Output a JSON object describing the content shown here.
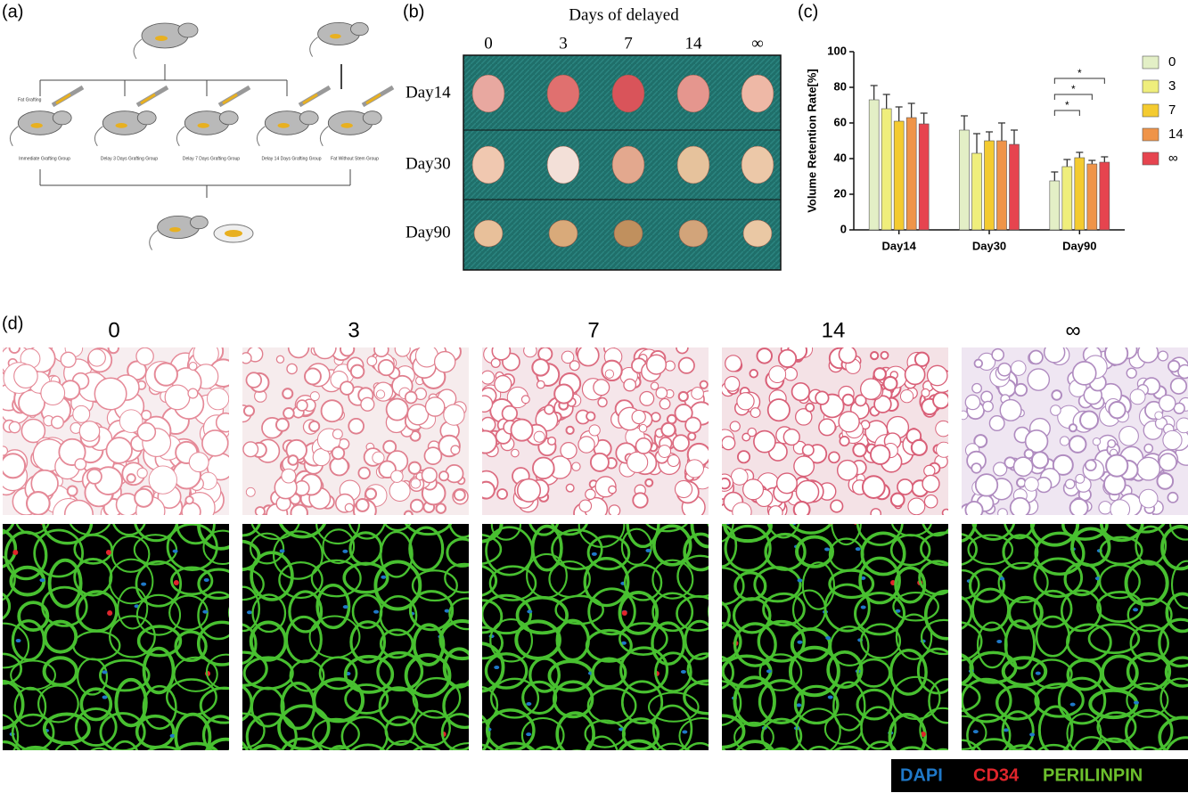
{
  "panel_labels": [
    "(a)",
    "(b)",
    "(c)",
    "(d)"
  ],
  "panel_a": {
    "step": "Fat Grafting",
    "groups": [
      "Immediate Grafting Group",
      "Delay 3 Days Grafting Group",
      "Delay 7 Days Grafting Group",
      "Delay 14 Days Grafting Group",
      "Fat Without Stem Group"
    ]
  },
  "panel_b": {
    "title": "Days of delayed",
    "columns": [
      "0",
      "3",
      "7",
      "14",
      "∞"
    ],
    "rows": [
      "Day14",
      "Day30",
      "Day90"
    ]
  },
  "chart_data": {
    "type": "bar",
    "ylabel": "Volume Retention Rate[%]",
    "categories": [
      "Day14",
      "Day30",
      "Day90"
    ],
    "series": [
      {
        "name": "0",
        "color": "#e3efc6",
        "values": [
          73,
          56,
          27.5
        ],
        "errors": [
          8,
          8,
          5
        ]
      },
      {
        "name": "3",
        "color": "#efee7c",
        "values": [
          68,
          43,
          35.5
        ],
        "errors": [
          8,
          11,
          4
        ]
      },
      {
        "name": "7",
        "color": "#f4cb30",
        "values": [
          61,
          50,
          40.5
        ],
        "errors": [
          8,
          5,
          3
        ]
      },
      {
        "name": "14",
        "color": "#ef9449",
        "values": [
          63,
          50,
          37
        ],
        "errors": [
          8,
          10,
          2
        ]
      },
      {
        "name": "∞",
        "color": "#e6444f",
        "values": [
          59.5,
          48,
          38
        ],
        "errors": [
          6,
          8,
          3
        ]
      }
    ],
    "ylim": [
      0,
      100
    ],
    "yticks": [
      0,
      20,
      40,
      60,
      80,
      100
    ],
    "annotations": [
      "*",
      "*",
      "*"
    ],
    "legend": "right"
  },
  "panel_d": {
    "columns": [
      "0",
      "3",
      "7",
      "14",
      "∞"
    ],
    "legend": [
      {
        "name": "DAPI",
        "color": "#1f78c8"
      },
      {
        "name": "CD34",
        "color": "#e0252b"
      },
      {
        "name": "PERILINPIN",
        "color": "#6cc02c"
      }
    ]
  }
}
